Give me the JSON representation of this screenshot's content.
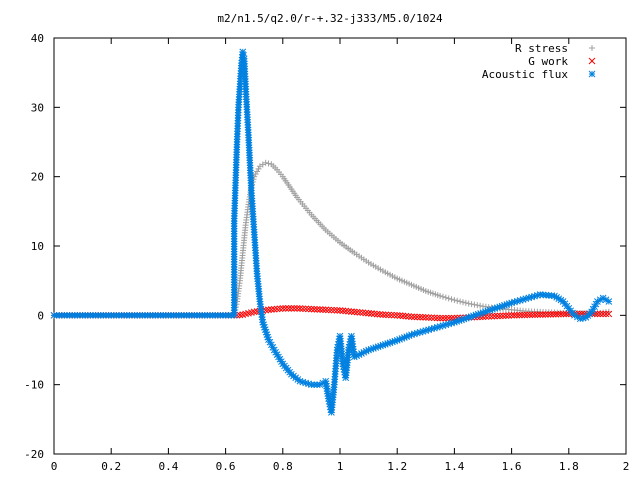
{
  "chart_data": {
    "type": "scatter",
    "title": "m2/n1.5/q2.0/r-+.32-j333/M5.0/1024",
    "xlabel": "",
    "ylabel": "",
    "xlim": [
      0,
      2
    ],
    "ylim": [
      -20,
      40
    ],
    "xticks": [
      "0",
      "0.2",
      "0.4",
      "0.6",
      "0.8",
      "1",
      "1.2",
      "1.4",
      "1.6",
      "1.8",
      "2"
    ],
    "yticks": [
      "-20",
      "-10",
      "0",
      "10",
      "20",
      "30",
      "40"
    ],
    "grid": false,
    "legend_position": "top-right",
    "series": [
      {
        "name": "R stress",
        "marker": "plus",
        "color": "#a0a0a0",
        "points": [
          [
            0.0,
            0
          ],
          [
            0.1,
            0
          ],
          [
            0.2,
            0
          ],
          [
            0.3,
            0
          ],
          [
            0.4,
            0
          ],
          [
            0.5,
            0
          ],
          [
            0.6,
            0
          ],
          [
            0.63,
            0
          ],
          [
            0.64,
            2
          ],
          [
            0.65,
            5
          ],
          [
            0.66,
            9
          ],
          [
            0.67,
            13
          ],
          [
            0.68,
            16
          ],
          [
            0.69,
            18.5
          ],
          [
            0.7,
            20
          ],
          [
            0.72,
            21.5
          ],
          [
            0.74,
            22
          ],
          [
            0.76,
            21.8
          ],
          [
            0.78,
            21
          ],
          [
            0.8,
            20
          ],
          [
            0.85,
            17
          ],
          [
            0.9,
            14.5
          ],
          [
            0.95,
            12.3
          ],
          [
            1.0,
            10.5
          ],
          [
            1.05,
            9
          ],
          [
            1.1,
            7.6
          ],
          [
            1.15,
            6.4
          ],
          [
            1.2,
            5.3
          ],
          [
            1.25,
            4.4
          ],
          [
            1.3,
            3.5
          ],
          [
            1.35,
            2.8
          ],
          [
            1.4,
            2.2
          ],
          [
            1.45,
            1.7
          ],
          [
            1.5,
            1.3
          ],
          [
            1.55,
            1
          ],
          [
            1.6,
            0.8
          ],
          [
            1.65,
            0.6
          ],
          [
            1.7,
            0.5
          ],
          [
            1.75,
            0.4
          ],
          [
            1.8,
            0.3
          ],
          [
            1.85,
            0.3
          ],
          [
            1.9,
            0.3
          ],
          [
            1.94,
            0.5
          ]
        ]
      },
      {
        "name": "G work",
        "marker": "cross",
        "color": "#ff0000",
        "points": [
          [
            0.0,
            0
          ],
          [
            0.2,
            0
          ],
          [
            0.4,
            0
          ],
          [
            0.6,
            0
          ],
          [
            0.64,
            0
          ],
          [
            0.66,
            0.1
          ],
          [
            0.68,
            0.3
          ],
          [
            0.7,
            0.5
          ],
          [
            0.75,
            0.8
          ],
          [
            0.8,
            1
          ],
          [
            0.85,
            1
          ],
          [
            0.9,
            0.9
          ],
          [
            0.95,
            0.8
          ],
          [
            1.0,
            0.7
          ],
          [
            1.05,
            0.5
          ],
          [
            1.1,
            0.3
          ],
          [
            1.15,
            0.1
          ],
          [
            1.2,
            0
          ],
          [
            1.25,
            -0.2
          ],
          [
            1.3,
            -0.3
          ],
          [
            1.35,
            -0.4
          ],
          [
            1.4,
            -0.4
          ],
          [
            1.45,
            -0.3
          ],
          [
            1.5,
            -0.2
          ],
          [
            1.55,
            -0.1
          ],
          [
            1.6,
            0
          ],
          [
            1.7,
            0.1
          ],
          [
            1.8,
            0.2
          ],
          [
            1.9,
            0.2
          ],
          [
            1.94,
            0.2
          ]
        ]
      },
      {
        "name": "Acoustic flux",
        "marker": "star",
        "color": "#0080e0",
        "points": [
          [
            0.0,
            0
          ],
          [
            0.1,
            0
          ],
          [
            0.2,
            0
          ],
          [
            0.3,
            0
          ],
          [
            0.4,
            0
          ],
          [
            0.5,
            0
          ],
          [
            0.6,
            0
          ],
          [
            0.63,
            0
          ],
          [
            0.63,
            13.6
          ],
          [
            0.64,
            25
          ],
          [
            0.645,
            30
          ],
          [
            0.65,
            33
          ],
          [
            0.655,
            36
          ],
          [
            0.66,
            38
          ],
          [
            0.665,
            37
          ],
          [
            0.67,
            33
          ],
          [
            0.68,
            26
          ],
          [
            0.69,
            18
          ],
          [
            0.7,
            12
          ],
          [
            0.71,
            6
          ],
          [
            0.72,
            2
          ],
          [
            0.73,
            -1
          ],
          [
            0.75,
            -3.5
          ],
          [
            0.77,
            -5
          ],
          [
            0.8,
            -7
          ],
          [
            0.83,
            -8.5
          ],
          [
            0.86,
            -9.5
          ],
          [
            0.9,
            -10
          ],
          [
            0.93,
            -10
          ],
          [
            0.95,
            -9.5
          ],
          [
            0.96,
            -12
          ],
          [
            0.97,
            -14
          ],
          [
            0.98,
            -10
          ],
          [
            0.99,
            -5
          ],
          [
            1.0,
            -3
          ],
          [
            1.01,
            -7
          ],
          [
            1.02,
            -9
          ],
          [
            1.03,
            -5
          ],
          [
            1.04,
            -3
          ],
          [
            1.05,
            -6
          ],
          [
            1.1,
            -5
          ],
          [
            1.15,
            -4.3
          ],
          [
            1.2,
            -3.6
          ],
          [
            1.25,
            -2.8
          ],
          [
            1.3,
            -2.2
          ],
          [
            1.35,
            -1.6
          ],
          [
            1.4,
            -1
          ],
          [
            1.45,
            -0.3
          ],
          [
            1.5,
            0.4
          ],
          [
            1.55,
            1.1
          ],
          [
            1.6,
            1.8
          ],
          [
            1.65,
            2.4
          ],
          [
            1.7,
            3
          ],
          [
            1.75,
            2.8
          ],
          [
            1.78,
            2
          ],
          [
            1.8,
            1
          ],
          [
            1.82,
            0
          ],
          [
            1.84,
            -0.5
          ],
          [
            1.86,
            -0.3
          ],
          [
            1.88,
            0.5
          ],
          [
            1.9,
            2
          ],
          [
            1.92,
            2.5
          ],
          [
            1.94,
            2
          ]
        ]
      }
    ]
  }
}
